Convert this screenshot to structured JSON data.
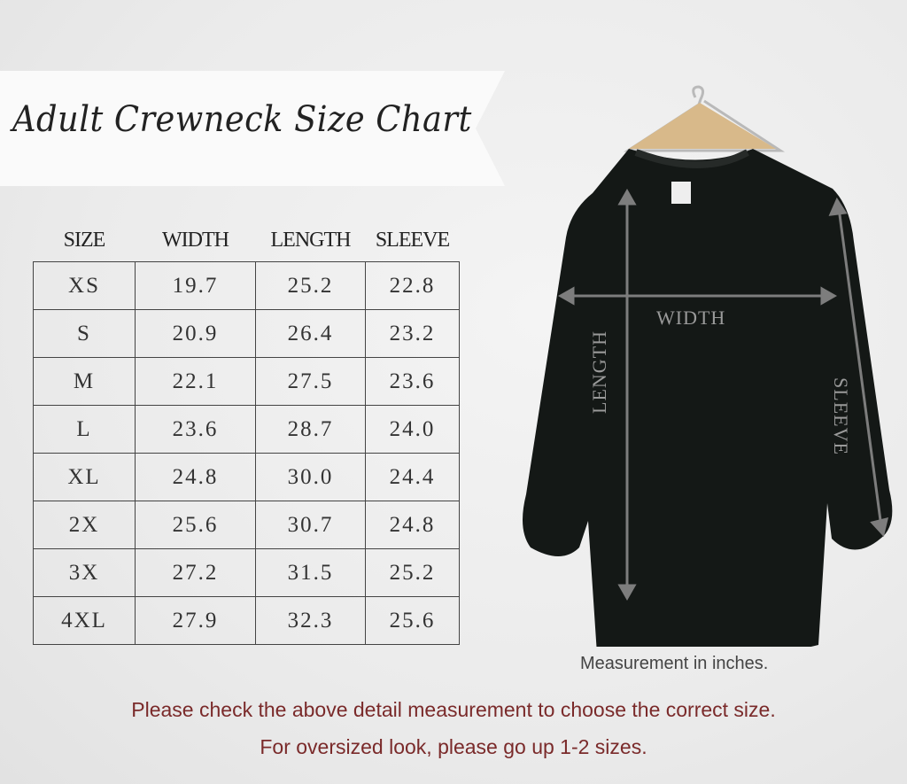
{
  "title": "Adult Crewneck Size Chart",
  "table": {
    "headers": [
      "SIZE",
      "WIDTH",
      "LENGTH",
      "SLEEVE"
    ],
    "rows": [
      [
        "XS",
        "19.7",
        "25.2",
        "22.8"
      ],
      [
        "S",
        "20.9",
        "26.4",
        "23.2"
      ],
      [
        "M",
        "22.1",
        "27.5",
        "23.6"
      ],
      [
        "L",
        "23.6",
        "28.7",
        "24.0"
      ],
      [
        "XL",
        "24.8",
        "30.0",
        "24.4"
      ],
      [
        "2X",
        "25.6",
        "30.7",
        "24.8"
      ],
      [
        "3X",
        "27.2",
        "31.5",
        "25.2"
      ],
      [
        "4XL",
        "27.9",
        "32.3",
        "25.6"
      ]
    ]
  },
  "diagram": {
    "width_label": "WIDTH",
    "length_label": "LENGTH",
    "sleeve_label": "SLEEVE"
  },
  "note": "Measurement in inches.",
  "footer": {
    "line1": "Please check the above detail measurement to choose the correct size.",
    "line2": "For oversized look,  please go up 1-2 sizes."
  },
  "colors": {
    "footer_text": "#7a2a2a",
    "shirt": "#141816"
  }
}
